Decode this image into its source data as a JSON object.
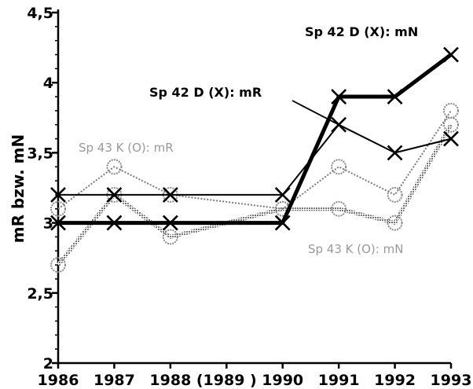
{
  "chart_data": {
    "type": "line",
    "ylabel": "mR bzw. mN",
    "ylim": [
      2,
      4.5
    ],
    "yticks": [
      "2",
      "2,5",
      "3",
      "3,5",
      "4",
      "4,5"
    ],
    "yticks_values": [
      2,
      2.5,
      3,
      3.5,
      4,
      4.5
    ],
    "categories": [
      "1986",
      "1987",
      "1988",
      "(1989 )",
      "1990",
      "1991",
      "1992",
      "1993"
    ],
    "x": [
      1986,
      1987,
      1988,
      1990,
      1991,
      1992,
      1993
    ],
    "series": [
      {
        "name": "Sp 42 D (X): mN",
        "marker": "x",
        "style": "thick",
        "color": "#000000",
        "values": [
          3.0,
          3.0,
          3.0,
          3.0,
          3.9,
          3.9,
          4.2
        ]
      },
      {
        "name": "Sp 42 D (X): mR",
        "marker": "x",
        "style": "medium",
        "color": "#000000",
        "values": [
          3.2,
          3.2,
          3.2,
          3.2,
          3.7,
          3.5,
          3.6
        ]
      },
      {
        "name": "Sp 43 K (O): mR",
        "marker": "o",
        "style": "dotted-thin",
        "color": "#8a8a8a",
        "values": [
          3.1,
          3.4,
          3.2,
          3.1,
          3.4,
          3.2,
          3.8
        ]
      },
      {
        "name": "Sp 43 K (O): mN",
        "marker": "o",
        "style": "dotted-thick",
        "color": "#8a8a8a",
        "values": [
          2.7,
          3.2,
          2.9,
          3.1,
          3.1,
          3.0,
          3.7
        ]
      }
    ]
  }
}
